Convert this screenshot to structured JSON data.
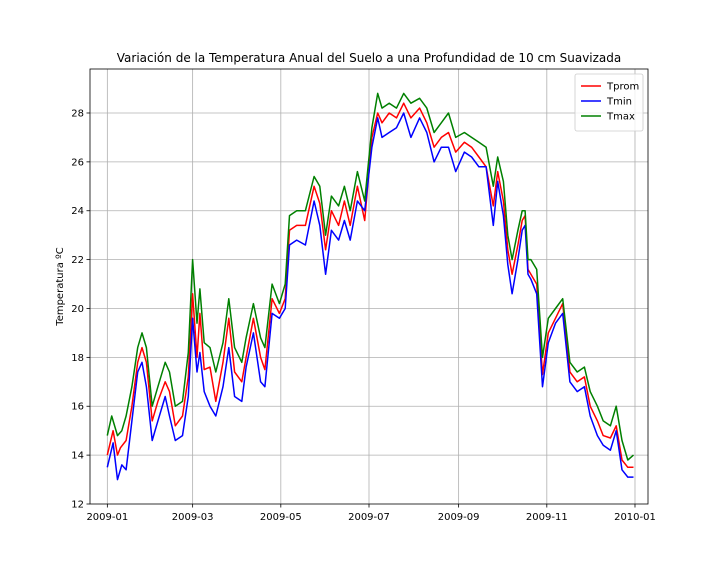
{
  "chart_data": {
    "type": "line",
    "title": "Variación de la Temperatura Anual del Suelo a una Profundidad de 10 cm Suavizada",
    "xlabel": "",
    "ylabel": "Temperatura ºC",
    "xlim": [
      "2008-12-20",
      "2010-01-10"
    ],
    "ylim": [
      12,
      29.8
    ],
    "x_ticks": [
      "2009-01",
      "2009-03",
      "2009-05",
      "2009-07",
      "2009-09",
      "2009-11",
      "2010-01"
    ],
    "y_ticks": [
      12,
      14,
      16,
      18,
      20,
      22,
      24,
      26,
      28
    ],
    "grid": true,
    "legend_position": "top-right",
    "series": [
      {
        "name": "Tprom",
        "color": "#ff0000",
        "points": [
          [
            "2009-01-01",
            14.0
          ],
          [
            "2009-01-05",
            15.0
          ],
          [
            "2009-01-08",
            14.0
          ],
          [
            "2009-01-10",
            14.3
          ],
          [
            "2009-01-14",
            14.6
          ],
          [
            "2009-01-18",
            16.0
          ],
          [
            "2009-01-22",
            17.8
          ],
          [
            "2009-01-25",
            18.4
          ],
          [
            "2009-01-28",
            17.8
          ],
          [
            "2009-02-01",
            15.4
          ],
          [
            "2009-02-05",
            16.2
          ],
          [
            "2009-02-10",
            17.0
          ],
          [
            "2009-02-13",
            16.6
          ],
          [
            "2009-02-17",
            15.2
          ],
          [
            "2009-02-22",
            15.6
          ],
          [
            "2009-02-26",
            17.2
          ],
          [
            "2009-03-01",
            20.6
          ],
          [
            "2009-03-04",
            18.0
          ],
          [
            "2009-03-06",
            19.8
          ],
          [
            "2009-03-09",
            17.5
          ],
          [
            "2009-03-13",
            17.6
          ],
          [
            "2009-03-17",
            16.2
          ],
          [
            "2009-03-22",
            17.8
          ],
          [
            "2009-03-26",
            19.6
          ],
          [
            "2009-03-30",
            17.4
          ],
          [
            "2009-04-04",
            17.0
          ],
          [
            "2009-04-07",
            18.0
          ],
          [
            "2009-04-12",
            19.6
          ],
          [
            "2009-04-17",
            18.0
          ],
          [
            "2009-04-20",
            17.5
          ],
          [
            "2009-04-25",
            20.4
          ],
          [
            "2009-04-30",
            19.8
          ],
          [
            "2009-05-04",
            20.4
          ],
          [
            "2009-05-07",
            23.2
          ],
          [
            "2009-05-12",
            23.4
          ],
          [
            "2009-05-18",
            23.4
          ],
          [
            "2009-05-24",
            25.0
          ],
          [
            "2009-05-28",
            24.3
          ],
          [
            "2009-06-01",
            22.4
          ],
          [
            "2009-06-05",
            24.0
          ],
          [
            "2009-06-10",
            23.4
          ],
          [
            "2009-06-14",
            24.4
          ],
          [
            "2009-06-18",
            23.4
          ],
          [
            "2009-06-23",
            25.0
          ],
          [
            "2009-06-28",
            23.6
          ],
          [
            "2009-07-03",
            27.0
          ],
          [
            "2009-07-07",
            28.0
          ],
          [
            "2009-07-10",
            27.6
          ],
          [
            "2009-07-15",
            28.0
          ],
          [
            "2009-07-20",
            27.8
          ],
          [
            "2009-07-25",
            28.4
          ],
          [
            "2009-07-30",
            27.8
          ],
          [
            "2009-08-05",
            28.2
          ],
          [
            "2009-08-10",
            27.6
          ],
          [
            "2009-08-15",
            26.6
          ],
          [
            "2009-08-20",
            27.0
          ],
          [
            "2009-08-25",
            27.2
          ],
          [
            "2009-08-30",
            26.4
          ],
          [
            "2009-09-05",
            26.8
          ],
          [
            "2009-09-10",
            26.6
          ],
          [
            "2009-09-15",
            26.2
          ],
          [
            "2009-09-20",
            25.8
          ],
          [
            "2009-09-25",
            24.2
          ],
          [
            "2009-09-28",
            25.6
          ],
          [
            "2009-10-02",
            24.4
          ],
          [
            "2009-10-05",
            22.4
          ],
          [
            "2009-10-08",
            21.4
          ],
          [
            "2009-10-12",
            22.6
          ],
          [
            "2009-10-15",
            23.6
          ],
          [
            "2009-10-17",
            23.8
          ],
          [
            "2009-10-19",
            21.6
          ],
          [
            "2009-10-21",
            21.4
          ],
          [
            "2009-10-25",
            21.0
          ],
          [
            "2009-10-29",
            17.3
          ],
          [
            "2009-11-02",
            19.0
          ],
          [
            "2009-11-07",
            19.6
          ],
          [
            "2009-11-12",
            20.2
          ],
          [
            "2009-11-17",
            17.4
          ],
          [
            "2009-11-22",
            17.0
          ],
          [
            "2009-11-27",
            17.2
          ],
          [
            "2009-12-01",
            16.0
          ],
          [
            "2009-12-06",
            15.4
          ],
          [
            "2009-12-10",
            14.8
          ],
          [
            "2009-12-15",
            14.7
          ],
          [
            "2009-12-19",
            15.2
          ],
          [
            "2009-12-23",
            13.8
          ],
          [
            "2009-12-27",
            13.5
          ],
          [
            "2009-12-31",
            13.5
          ]
        ]
      },
      {
        "name": "Tmin",
        "color": "#0000ff",
        "points": [
          [
            "2009-01-01",
            13.5
          ],
          [
            "2009-01-05",
            14.5
          ],
          [
            "2009-01-08",
            13.0
          ],
          [
            "2009-01-11",
            13.6
          ],
          [
            "2009-01-14",
            13.4
          ],
          [
            "2009-01-18",
            15.4
          ],
          [
            "2009-01-22",
            17.4
          ],
          [
            "2009-01-25",
            17.8
          ],
          [
            "2009-01-28",
            16.8
          ],
          [
            "2009-02-01",
            14.6
          ],
          [
            "2009-02-05",
            15.4
          ],
          [
            "2009-02-10",
            16.4
          ],
          [
            "2009-02-13",
            15.6
          ],
          [
            "2009-02-17",
            14.6
          ],
          [
            "2009-02-22",
            14.8
          ],
          [
            "2009-02-26",
            16.4
          ],
          [
            "2009-03-01",
            19.6
          ],
          [
            "2009-03-04",
            17.4
          ],
          [
            "2009-03-06",
            18.2
          ],
          [
            "2009-03-09",
            16.6
          ],
          [
            "2009-03-13",
            16.0
          ],
          [
            "2009-03-17",
            15.6
          ],
          [
            "2009-03-22",
            16.8
          ],
          [
            "2009-03-26",
            18.4
          ],
          [
            "2009-03-30",
            16.4
          ],
          [
            "2009-04-04",
            16.2
          ],
          [
            "2009-04-07",
            17.6
          ],
          [
            "2009-04-12",
            19.0
          ],
          [
            "2009-04-17",
            17.0
          ],
          [
            "2009-04-20",
            16.8
          ],
          [
            "2009-04-25",
            19.8
          ],
          [
            "2009-04-30",
            19.6
          ],
          [
            "2009-05-04",
            20.0
          ],
          [
            "2009-05-07",
            22.6
          ],
          [
            "2009-05-12",
            22.8
          ],
          [
            "2009-05-18",
            22.6
          ],
          [
            "2009-05-24",
            24.4
          ],
          [
            "2009-05-28",
            23.4
          ],
          [
            "2009-06-01",
            21.4
          ],
          [
            "2009-06-05",
            23.2
          ],
          [
            "2009-06-10",
            22.8
          ],
          [
            "2009-06-14",
            23.6
          ],
          [
            "2009-06-18",
            22.8
          ],
          [
            "2009-06-23",
            24.4
          ],
          [
            "2009-06-28",
            24.0
          ],
          [
            "2009-07-03",
            26.6
          ],
          [
            "2009-07-07",
            27.8
          ],
          [
            "2009-07-10",
            27.0
          ],
          [
            "2009-07-15",
            27.2
          ],
          [
            "2009-07-20",
            27.4
          ],
          [
            "2009-07-25",
            28.0
          ],
          [
            "2009-07-30",
            27.0
          ],
          [
            "2009-08-05",
            27.8
          ],
          [
            "2009-08-10",
            27.2
          ],
          [
            "2009-08-15",
            26.0
          ],
          [
            "2009-08-20",
            26.6
          ],
          [
            "2009-08-25",
            26.6
          ],
          [
            "2009-08-30",
            25.6
          ],
          [
            "2009-09-05",
            26.4
          ],
          [
            "2009-09-10",
            26.2
          ],
          [
            "2009-09-15",
            25.8
          ],
          [
            "2009-09-20",
            25.8
          ],
          [
            "2009-09-25",
            23.4
          ],
          [
            "2009-09-28",
            25.2
          ],
          [
            "2009-10-02",
            23.8
          ],
          [
            "2009-10-05",
            21.8
          ],
          [
            "2009-10-08",
            20.6
          ],
          [
            "2009-10-12",
            22.0
          ],
          [
            "2009-10-15",
            23.2
          ],
          [
            "2009-10-17",
            23.4
          ],
          [
            "2009-10-19",
            21.4
          ],
          [
            "2009-10-21",
            21.2
          ],
          [
            "2009-10-25",
            20.6
          ],
          [
            "2009-10-29",
            16.8
          ],
          [
            "2009-11-02",
            18.6
          ],
          [
            "2009-11-07",
            19.4
          ],
          [
            "2009-11-12",
            19.8
          ],
          [
            "2009-11-17",
            17.0
          ],
          [
            "2009-11-22",
            16.6
          ],
          [
            "2009-11-27",
            16.8
          ],
          [
            "2009-12-01",
            15.6
          ],
          [
            "2009-12-06",
            14.8
          ],
          [
            "2009-12-10",
            14.4
          ],
          [
            "2009-12-15",
            14.2
          ],
          [
            "2009-12-19",
            15.0
          ],
          [
            "2009-12-23",
            13.4
          ],
          [
            "2009-12-27",
            13.1
          ],
          [
            "2009-12-31",
            13.1
          ]
        ]
      },
      {
        "name": "Tmax",
        "color": "#008000",
        "points": [
          [
            "2009-01-01",
            14.8
          ],
          [
            "2009-01-04",
            15.6
          ],
          [
            "2009-01-08",
            14.8
          ],
          [
            "2009-01-11",
            15.0
          ],
          [
            "2009-01-14",
            15.6
          ],
          [
            "2009-01-18",
            16.8
          ],
          [
            "2009-01-22",
            18.4
          ],
          [
            "2009-01-25",
            19.0
          ],
          [
            "2009-01-28",
            18.4
          ],
          [
            "2009-02-01",
            16.0
          ],
          [
            "2009-02-05",
            16.8
          ],
          [
            "2009-02-10",
            17.8
          ],
          [
            "2009-02-13",
            17.4
          ],
          [
            "2009-02-17",
            16.0
          ],
          [
            "2009-02-22",
            16.2
          ],
          [
            "2009-02-26",
            18.2
          ],
          [
            "2009-03-01",
            22.0
          ],
          [
            "2009-03-04",
            19.4
          ],
          [
            "2009-03-06",
            20.8
          ],
          [
            "2009-03-09",
            18.6
          ],
          [
            "2009-03-13",
            18.4
          ],
          [
            "2009-03-17",
            17.4
          ],
          [
            "2009-03-22",
            18.6
          ],
          [
            "2009-03-26",
            20.4
          ],
          [
            "2009-03-30",
            18.4
          ],
          [
            "2009-04-04",
            17.8
          ],
          [
            "2009-04-07",
            18.8
          ],
          [
            "2009-04-12",
            20.2
          ],
          [
            "2009-04-17",
            18.8
          ],
          [
            "2009-04-20",
            18.4
          ],
          [
            "2009-04-25",
            21.0
          ],
          [
            "2009-04-30",
            20.2
          ],
          [
            "2009-05-04",
            21.0
          ],
          [
            "2009-05-07",
            23.8
          ],
          [
            "2009-05-12",
            24.0
          ],
          [
            "2009-05-18",
            24.0
          ],
          [
            "2009-05-24",
            25.4
          ],
          [
            "2009-05-28",
            25.0
          ],
          [
            "2009-06-01",
            23.0
          ],
          [
            "2009-06-05",
            24.6
          ],
          [
            "2009-06-10",
            24.2
          ],
          [
            "2009-06-14",
            25.0
          ],
          [
            "2009-06-18",
            24.0
          ],
          [
            "2009-06-23",
            25.6
          ],
          [
            "2009-06-28",
            24.4
          ],
          [
            "2009-07-03",
            27.4
          ],
          [
            "2009-07-07",
            28.8
          ],
          [
            "2009-07-10",
            28.2
          ],
          [
            "2009-07-15",
            28.4
          ],
          [
            "2009-07-20",
            28.2
          ],
          [
            "2009-07-25",
            28.8
          ],
          [
            "2009-07-30",
            28.4
          ],
          [
            "2009-08-05",
            28.6
          ],
          [
            "2009-08-10",
            28.2
          ],
          [
            "2009-08-15",
            27.2
          ],
          [
            "2009-08-20",
            27.6
          ],
          [
            "2009-08-25",
            28.0
          ],
          [
            "2009-08-30",
            27.0
          ],
          [
            "2009-09-05",
            27.2
          ],
          [
            "2009-09-10",
            27.0
          ],
          [
            "2009-09-15",
            26.8
          ],
          [
            "2009-09-20",
            26.6
          ],
          [
            "2009-09-25",
            25.0
          ],
          [
            "2009-09-28",
            26.2
          ],
          [
            "2009-10-02",
            25.2
          ],
          [
            "2009-10-05",
            23.0
          ],
          [
            "2009-10-08",
            22.0
          ],
          [
            "2009-10-12",
            23.2
          ],
          [
            "2009-10-15",
            24.0
          ],
          [
            "2009-10-17",
            24.0
          ],
          [
            "2009-10-19",
            22.0
          ],
          [
            "2009-10-21",
            22.0
          ],
          [
            "2009-10-25",
            21.6
          ],
          [
            "2009-10-29",
            18.0
          ],
          [
            "2009-11-02",
            19.6
          ],
          [
            "2009-11-07",
            20.0
          ],
          [
            "2009-11-12",
            20.4
          ],
          [
            "2009-11-17",
            17.8
          ],
          [
            "2009-11-22",
            17.4
          ],
          [
            "2009-11-27",
            17.6
          ],
          [
            "2009-12-01",
            16.6
          ],
          [
            "2009-12-06",
            16.0
          ],
          [
            "2009-12-10",
            15.4
          ],
          [
            "2009-12-15",
            15.2
          ],
          [
            "2009-12-19",
            16.0
          ],
          [
            "2009-12-23",
            14.6
          ],
          [
            "2009-12-27",
            13.8
          ],
          [
            "2009-12-31",
            14.0
          ]
        ]
      }
    ]
  }
}
